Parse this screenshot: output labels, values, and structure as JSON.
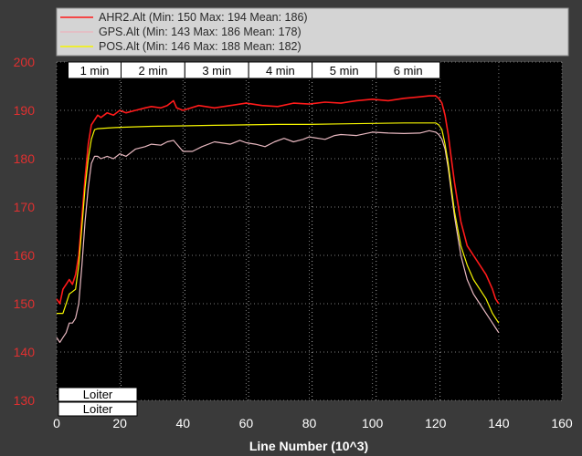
{
  "chart_data": {
    "type": "line",
    "xlabel": "Line Number (10^3)",
    "ylabel": "",
    "xlim": [
      0,
      160
    ],
    "ylim": [
      130,
      200
    ],
    "x_ticks": [
      "0",
      "20",
      "40",
      "60",
      "80",
      "100",
      "120",
      "140",
      "160"
    ],
    "y_ticks": [
      "130",
      "140",
      "150",
      "160",
      "170",
      "180",
      "190",
      "200"
    ],
    "grid": true,
    "legend_position": "top-left",
    "colors": {
      "plot_bg": "#000000",
      "outer_bg": "#3a3a3a",
      "ytick_color": "#e03030",
      "xtick_color": "#ffffff",
      "legend_bg": "#d4d4d4"
    },
    "series": [
      {
        "name": "AHR2.Alt",
        "legend": "AHR2.Alt (Min: 150 Max: 194 Mean: 186)",
        "color": "#ff1a1a",
        "points": [
          [
            0,
            151
          ],
          [
            1,
            150
          ],
          [
            2,
            153
          ],
          [
            3,
            154
          ],
          [
            4,
            155
          ],
          [
            5,
            154
          ],
          [
            6,
            156
          ],
          [
            7,
            160
          ],
          [
            8,
            168
          ],
          [
            9,
            176
          ],
          [
            10,
            183
          ],
          [
            11,
            187
          ],
          [
            12,
            188
          ],
          [
            13,
            189
          ],
          [
            14,
            188.5
          ],
          [
            16,
            189.5
          ],
          [
            18,
            189
          ],
          [
            20,
            190
          ],
          [
            22,
            189.5
          ],
          [
            25,
            190
          ],
          [
            28,
            190.5
          ],
          [
            30,
            190.8
          ],
          [
            33,
            190.5
          ],
          [
            35,
            191
          ],
          [
            37,
            192
          ],
          [
            38,
            190.5
          ],
          [
            40,
            190
          ],
          [
            45,
            191
          ],
          [
            50,
            190.5
          ],
          [
            55,
            191
          ],
          [
            60,
            191.5
          ],
          [
            65,
            191
          ],
          [
            70,
            190.8
          ],
          [
            75,
            191.5
          ],
          [
            80,
            191.3
          ],
          [
            85,
            191.7
          ],
          [
            90,
            191.5
          ],
          [
            95,
            192
          ],
          [
            100,
            192.3
          ],
          [
            105,
            192
          ],
          [
            110,
            192.5
          ],
          [
            115,
            192.8
          ],
          [
            118,
            193
          ],
          [
            120,
            193
          ],
          [
            121,
            192.5
          ],
          [
            122,
            191.5
          ],
          [
            123,
            189
          ],
          [
            124,
            185
          ],
          [
            125,
            180
          ],
          [
            126,
            175
          ],
          [
            127,
            171
          ],
          [
            128,
            167
          ],
          [
            130,
            162
          ],
          [
            132,
            160
          ],
          [
            134,
            158
          ],
          [
            136,
            156
          ],
          [
            138,
            153
          ],
          [
            139,
            151
          ],
          [
            140,
            150
          ]
        ]
      },
      {
        "name": "GPS.Alt",
        "legend": "GPS.Alt (Min: 143 Max: 186 Mean: 178)",
        "color": "#e8b8c0",
        "points": [
          [
            0,
            143
          ],
          [
            1,
            142
          ],
          [
            2,
            143
          ],
          [
            3,
            144
          ],
          [
            4,
            146
          ],
          [
            5,
            146
          ],
          [
            6,
            147
          ],
          [
            7,
            150
          ],
          [
            8,
            158
          ],
          [
            9,
            167
          ],
          [
            10,
            174
          ],
          [
            11,
            179
          ],
          [
            12,
            180.5
          ],
          [
            13,
            180.5
          ],
          [
            14,
            180
          ],
          [
            16,
            180.5
          ],
          [
            18,
            180
          ],
          [
            20,
            181
          ],
          [
            22,
            180.5
          ],
          [
            25,
            182
          ],
          [
            28,
            182.5
          ],
          [
            30,
            183
          ],
          [
            33,
            182.8
          ],
          [
            35,
            183.5
          ],
          [
            37,
            183.8
          ],
          [
            40,
            181.5
          ],
          [
            43,
            181.5
          ],
          [
            46,
            182.5
          ],
          [
            50,
            183.5
          ],
          [
            55,
            183
          ],
          [
            58,
            183.8
          ],
          [
            60,
            183.3
          ],
          [
            63,
            183
          ],
          [
            66,
            182.5
          ],
          [
            69,
            183.5
          ],
          [
            72,
            184.2
          ],
          [
            75,
            183.5
          ],
          [
            78,
            184
          ],
          [
            80,
            184.5
          ],
          [
            85,
            184
          ],
          [
            88,
            184.8
          ],
          [
            90,
            185
          ],
          [
            95,
            184.8
          ],
          [
            100,
            185.5
          ],
          [
            105,
            185.3
          ],
          [
            110,
            185.2
          ],
          [
            115,
            185.3
          ],
          [
            118,
            185.8
          ],
          [
            120,
            185.5
          ],
          [
            121,
            185
          ],
          [
            122,
            184
          ],
          [
            123,
            182
          ],
          [
            124,
            178
          ],
          [
            125,
            173
          ],
          [
            126,
            168
          ],
          [
            128,
            160
          ],
          [
            130,
            155
          ],
          [
            132,
            152
          ],
          [
            134,
            150
          ],
          [
            136,
            148
          ],
          [
            138,
            146
          ],
          [
            139,
            145
          ],
          [
            140,
            144
          ]
        ]
      },
      {
        "name": "POS.Alt",
        "legend": "POS.Alt (Min: 146 Max: 188 Mean: 182)",
        "color": "#f5f500",
        "points": [
          [
            0,
            148
          ],
          [
            1,
            148
          ],
          [
            2,
            148
          ],
          [
            3,
            150
          ],
          [
            4,
            152
          ],
          [
            5,
            152.5
          ],
          [
            6,
            153
          ],
          [
            7,
            158
          ],
          [
            8,
            166
          ],
          [
            9,
            174
          ],
          [
            10,
            180
          ],
          [
            11,
            184
          ],
          [
            12,
            186
          ],
          [
            13,
            186.2
          ],
          [
            15,
            186.3
          ],
          [
            20,
            186.5
          ],
          [
            30,
            186.7
          ],
          [
            40,
            186.8
          ],
          [
            50,
            186.9
          ],
          [
            60,
            187
          ],
          [
            70,
            187.1
          ],
          [
            80,
            187.1
          ],
          [
            90,
            187.2
          ],
          [
            100,
            187.3
          ],
          [
            110,
            187.4
          ],
          [
            120,
            187.4
          ],
          [
            121,
            187
          ],
          [
            122,
            186
          ],
          [
            123,
            183
          ],
          [
            124,
            179
          ],
          [
            125,
            174
          ],
          [
            126,
            169
          ],
          [
            128,
            162
          ],
          [
            130,
            158
          ],
          [
            132,
            155
          ],
          [
            134,
            153
          ],
          [
            136,
            151
          ],
          [
            138,
            148
          ],
          [
            139,
            147
          ],
          [
            140,
            146
          ]
        ]
      }
    ],
    "time_markers": [
      {
        "label": "1 min",
        "x": 20.4
      },
      {
        "label": "2 min",
        "x": 40.6
      },
      {
        "label": "3 min",
        "x": 60.8
      },
      {
        "label": "4 min",
        "x": 80.9
      },
      {
        "label": "5 min",
        "x": 101.2
      },
      {
        "label": "6 min",
        "x": 121.4
      }
    ],
    "mode_labels": [
      "Loiter",
      "Loiter"
    ]
  }
}
